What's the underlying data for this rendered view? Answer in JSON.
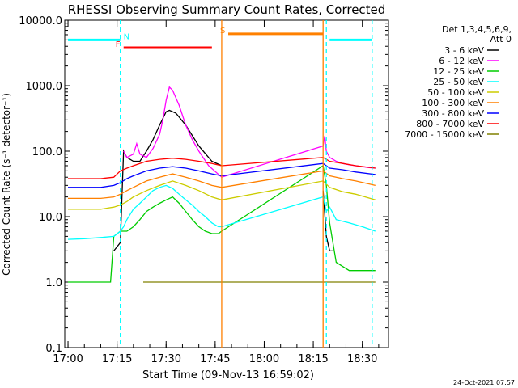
{
  "chart_data": {
    "type": "line",
    "title": "RHESSI Observing Summary Count Rates, Corrected",
    "xlabel": "Start Time (09-Nov-13 16:59:02)",
    "ylabel": "Corrected Count Rate (s⁻¹ detector⁻¹)",
    "yscale": "log",
    "xlim": [
      "16:59",
      "18:38"
    ],
    "ylim": [
      0.1,
      10000
    ],
    "x_ticks": [
      "17:00",
      "17:15",
      "17:30",
      "17:45",
      "18:00",
      "18:15",
      "18:30"
    ],
    "y_ticks": [
      "0.1",
      "1.0",
      "10.0",
      "100.0",
      "1000.0",
      "10000.0"
    ],
    "legend_header": [
      "Det 1,3,4,5,6,9,",
      "Att 0"
    ],
    "legend_position": "right",
    "footer_date": "24-Oct-2021 07:57",
    "flag_labels": {
      "night": "N",
      "flare": "F",
      "saa": "S"
    },
    "series": [
      {
        "name": "3 - 6 keV",
        "color": "#000000",
        "x": [
          "17:00",
          "17:13",
          "17:14",
          "17:16",
          "17:17",
          "17:18",
          "17:20",
          "17:22",
          "17:24",
          "17:26",
          "17:28",
          "17:30",
          "17:31",
          "17:33",
          "17:36",
          "17:40",
          "17:44",
          "17:47",
          "18:17",
          "18:18",
          "18:19",
          "18:20",
          "18:21",
          "18:22"
        ],
        "y": [
          null,
          null,
          3,
          4,
          100,
          80,
          70,
          70,
          100,
          150,
          250,
          400,
          420,
          380,
          250,
          120,
          70,
          60,
          null,
          25,
          5,
          3,
          3,
          null
        ]
      },
      {
        "name": "6 - 12 keV",
        "color": "#ff00ff",
        "x": [
          "17:17",
          "17:18",
          "17:20",
          "17:21",
          "17:22",
          "17:24",
          "17:26",
          "17:28",
          "17:29",
          "17:30",
          "17:31",
          "17:32",
          "17:34",
          "17:36",
          "17:38",
          "17:40",
          "17:43",
          "17:47",
          "18:18",
          "18:18.5",
          "18:19",
          "18:20",
          "18:21",
          "18:22",
          "18:24",
          "18:26",
          "18:28",
          "18:30",
          "18:32",
          "18:34"
        ],
        "y": [
          100,
          80,
          90,
          130,
          90,
          80,
          110,
          180,
          300,
          600,
          950,
          850,
          500,
          250,
          150,
          100,
          60,
          40,
          120,
          170,
          100,
          80,
          75,
          70,
          65,
          62,
          60,
          58,
          56,
          55
        ]
      },
      {
        "name": "12 - 25 keV",
        "color": "#00cc00",
        "x": [
          "17:00",
          "17:10",
          "17:13",
          "17:14",
          "17:16",
          "17:17",
          "17:18",
          "17:20",
          "17:22",
          "17:24",
          "17:26",
          "17:28",
          "17:30",
          "17:32",
          "17:34",
          "17:36",
          "17:38",
          "17:40",
          "17:42",
          "17:44",
          "17:46",
          "17:47",
          "18:18",
          "18:19",
          "18:20",
          "18:21",
          "18:22",
          "18:26",
          "18:30",
          "18:34"
        ],
        "y": [
          1.0,
          1.0,
          1.0,
          5,
          6,
          6,
          6,
          7,
          9,
          12,
          14,
          16,
          18,
          20,
          16,
          12,
          9,
          7,
          6,
          5.5,
          5.5,
          6,
          60,
          30,
          8,
          4,
          2,
          1.5,
          1.5,
          1.5
        ]
      },
      {
        "name": "25 - 50 keV",
        "color": "#00ffff",
        "x": [
          "17:00",
          "17:05",
          "17:10",
          "17:14",
          "17:16",
          "17:17",
          "17:18",
          "17:20",
          "17:22",
          "17:24",
          "17:26",
          "17:28",
          "17:30",
          "17:32",
          "17:34",
          "17:36",
          "17:38",
          "17:40",
          "17:42",
          "17:44",
          "17:46",
          "17:47",
          "18:18",
          "18:19",
          "18:20",
          "18:22",
          "18:26",
          "18:30",
          "18:34"
        ],
        "y": [
          4.5,
          4.6,
          4.8,
          5,
          6,
          7,
          9,
          13,
          16,
          20,
          25,
          28,
          30,
          27,
          22,
          18,
          15,
          12,
          10,
          8,
          7,
          7,
          20,
          12,
          14,
          9,
          8,
          7,
          6
        ]
      },
      {
        "name": "50 - 100 keV",
        "color": "#cccc00",
        "x": [
          "17:00",
          "17:05",
          "17:10",
          "17:14",
          "17:16",
          "17:18",
          "17:20",
          "17:24",
          "17:28",
          "17:32",
          "17:36",
          "17:40",
          "17:44",
          "17:47",
          "18:18",
          "18:20",
          "18:24",
          "18:28",
          "18:34"
        ],
        "y": [
          13,
          13,
          13,
          14,
          15,
          17,
          20,
          25,
          30,
          35,
          30,
          25,
          20,
          18,
          35,
          28,
          24,
          22,
          18
        ]
      },
      {
        "name": "100 - 300 keV",
        "color": "#ff8000",
        "x": [
          "17:00",
          "17:05",
          "17:10",
          "17:14",
          "17:16",
          "17:18",
          "17:20",
          "17:24",
          "17:28",
          "17:32",
          "17:36",
          "17:40",
          "17:44",
          "17:47",
          "18:18",
          "18:20",
          "18:24",
          "18:28",
          "18:34"
        ],
        "y": [
          19,
          19,
          19,
          20,
          22,
          25,
          28,
          35,
          40,
          45,
          40,
          35,
          30,
          28,
          50,
          42,
          38,
          35,
          30
        ]
      },
      {
        "name": "300 - 800 keV",
        "color": "#0000ff",
        "x": [
          "17:00",
          "17:05",
          "17:10",
          "17:14",
          "17:16",
          "17:18",
          "17:20",
          "17:24",
          "17:28",
          "17:32",
          "17:36",
          "17:40",
          "17:44",
          "17:47",
          "18:18",
          "18:20",
          "18:24",
          "18:28",
          "18:34"
        ],
        "y": [
          28,
          28,
          28,
          30,
          33,
          38,
          42,
          50,
          55,
          58,
          55,
          50,
          45,
          42,
          65,
          55,
          52,
          48,
          44
        ]
      },
      {
        "name": "800 - 7000 keV",
        "color": "#ff0000",
        "x": [
          "17:00",
          "17:05",
          "17:10",
          "17:14",
          "17:16",
          "17:18",
          "17:20",
          "17:24",
          "17:28",
          "17:32",
          "17:36",
          "17:40",
          "17:44",
          "17:47",
          "18:18",
          "18:20",
          "18:24",
          "18:28",
          "18:34"
        ],
        "y": [
          38,
          38,
          38,
          40,
          50,
          55,
          60,
          70,
          75,
          78,
          75,
          70,
          65,
          60,
          80,
          70,
          65,
          60,
          55
        ]
      },
      {
        "name": "7000 - 15000 keV",
        "color": "#808000",
        "x": [
          "17:23",
          "17:30",
          "17:33",
          "17:40",
          "17:46",
          "18:18",
          "18:22",
          "18:26",
          "18:30",
          "18:34"
        ],
        "y": [
          1.0,
          1.0,
          1.0,
          1.0,
          1.0,
          1.0,
          1.0,
          1.0,
          1.0,
          1.0
        ]
      }
    ],
    "flags": [
      {
        "label": "N",
        "color": "#00ffff",
        "value": 5000,
        "x": [
          [
            "17:00",
            "17:16"
          ],
          [
            "18:20",
            "18:33"
          ]
        ]
      },
      {
        "label": "F",
        "color": "#ff0000",
        "value": 3800,
        "x": [
          [
            "17:17",
            "17:44"
          ]
        ]
      },
      {
        "label": "S",
        "color": "#ff8000",
        "value": 6200,
        "x": [
          [
            "17:49",
            "18:18"
          ]
        ]
      }
    ],
    "vlines": [
      {
        "color": "#00ffff",
        "style": "dashed",
        "x": [
          "17:16",
          "18:19",
          "18:33"
        ]
      },
      {
        "color": "#ff8000",
        "style": "solid",
        "x": [
          "17:47",
          "18:18"
        ]
      }
    ]
  }
}
